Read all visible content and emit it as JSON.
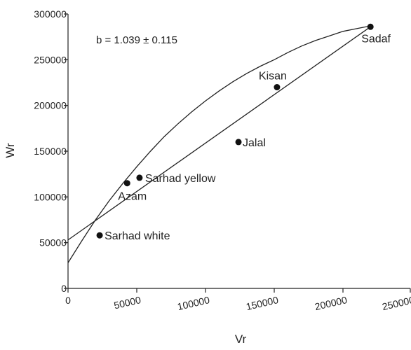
{
  "chart_data": {
    "type": "scatter",
    "title": "",
    "xlabel": "Vr",
    "ylabel": "Wr",
    "annotation": "b = 1.039 ± 0.115",
    "xlim": [
      0,
      250000
    ],
    "ylim": [
      0,
      300000
    ],
    "x_ticks": [
      0,
      50000,
      100000,
      150000,
      200000,
      250000
    ],
    "y_ticks": [
      0,
      50000,
      100000,
      150000,
      200000,
      250000,
      300000
    ],
    "x_tick_labels": [
      "0",
      "50000",
      "100000",
      "150000",
      "200000",
      "250000"
    ],
    "y_tick_labels": [
      "0",
      "50000",
      "100000",
      "150000",
      "200000",
      "250000",
      "300000"
    ],
    "grid": false,
    "points": [
      {
        "label": "Sadaf",
        "x": 220000,
        "y": 286000
      },
      {
        "label": "Kisan",
        "x": 152000,
        "y": 220000
      },
      {
        "label": "Jalal",
        "x": 124000,
        "y": 160000
      },
      {
        "label": "Sarhad yellow",
        "x": 52000,
        "y": 121000
      },
      {
        "label": "Azam",
        "x": 43000,
        "y": 115000
      },
      {
        "label": "Sarhad white",
        "x": 23000,
        "y": 58000
      }
    ],
    "regression_line": {
      "x": [
        0,
        220000
      ],
      "y": [
        53000,
        286000
      ]
    },
    "parabola": {
      "x": [
        0,
        10000,
        20000,
        30000,
        40000,
        50000,
        60000,
        70000,
        80000,
        90000,
        100000,
        110000,
        120000,
        130000,
        140000,
        150000,
        160000,
        170000,
        180000,
        190000,
        200000,
        210000,
        220000
      ],
      "y": [
        28000,
        52000,
        75000,
        96000,
        115000,
        133000,
        150000,
        166000,
        180000,
        193000,
        205000,
        216000,
        226000,
        235000,
        243000,
        250000,
        258000,
        265000,
        271000,
        276000,
        281000,
        284000,
        287000
      ]
    }
  }
}
